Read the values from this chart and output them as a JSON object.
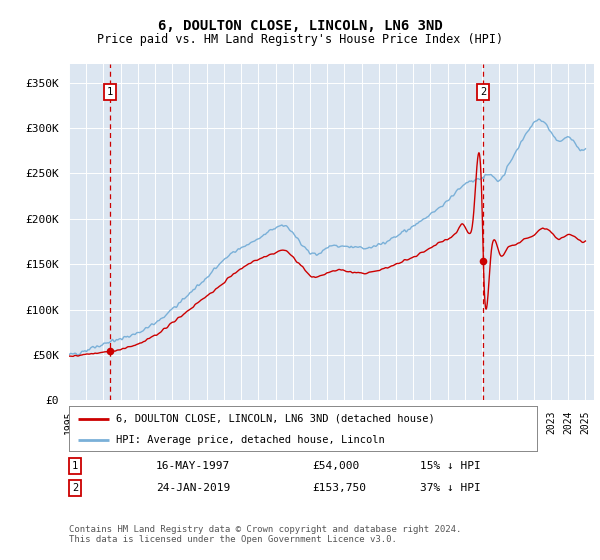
{
  "title": "6, DOULTON CLOSE, LINCOLN, LN6 3ND",
  "subtitle": "Price paid vs. HM Land Registry's House Price Index (HPI)",
  "yticks": [
    0,
    50000,
    100000,
    150000,
    200000,
    250000,
    300000,
    350000
  ],
  "ytick_labels": [
    "£0",
    "£50K",
    "£100K",
    "£150K",
    "£200K",
    "£250K",
    "£300K",
    "£350K"
  ],
  "xlim_start": 1995.0,
  "xlim_end": 2025.5,
  "ylim": [
    0,
    370000
  ],
  "marker1_x": 1997.37,
  "marker1_y": 54000,
  "marker2_x": 2019.07,
  "marker2_y": 153750,
  "hpi_color": "#7ab0d8",
  "price_color": "#cc0000",
  "dashed_line_color": "#cc0000",
  "plot_bg_color": "#dce6f1",
  "legend_label_red": "6, DOULTON CLOSE, LINCOLN, LN6 3ND (detached house)",
  "legend_label_blue": "HPI: Average price, detached house, Lincoln",
  "marker1_date": "16-MAY-1997",
  "marker1_price": "£54,000",
  "marker1_hpi": "15% ↓ HPI",
  "marker2_date": "24-JAN-2019",
  "marker2_price": "£153,750",
  "marker2_hpi": "37% ↓ HPI",
  "footnote": "Contains HM Land Registry data © Crown copyright and database right 2024.\nThis data is licensed under the Open Government Licence v3.0.",
  "xtick_years": [
    1995,
    1996,
    1997,
    1998,
    1999,
    2000,
    2001,
    2002,
    2003,
    2004,
    2005,
    2006,
    2007,
    2008,
    2009,
    2010,
    2011,
    2012,
    2013,
    2014,
    2015,
    2016,
    2017,
    2018,
    2019,
    2020,
    2021,
    2022,
    2023,
    2024,
    2025
  ]
}
